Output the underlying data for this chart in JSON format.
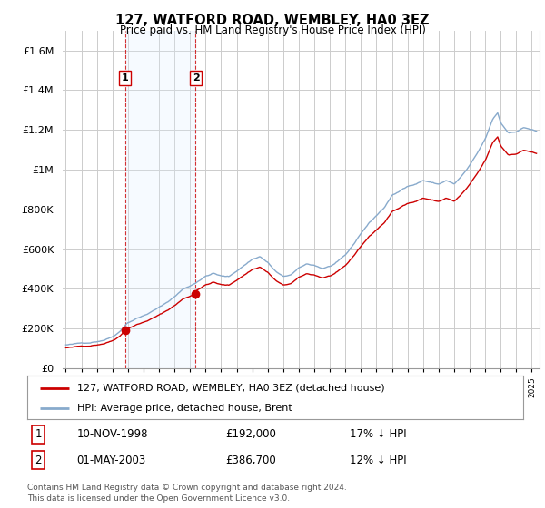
{
  "title": "127, WATFORD ROAD, WEMBLEY, HA0 3EZ",
  "subtitle": "Price paid vs. HM Land Registry's House Price Index (HPI)",
  "legend_line1": "127, WATFORD ROAD, WEMBLEY, HA0 3EZ (detached house)",
  "legend_line2": "HPI: Average price, detached house, Brent",
  "table_rows": [
    {
      "num": "1",
      "date": "10-NOV-1998",
      "price": "£192,000",
      "hpi": "17% ↓ HPI"
    },
    {
      "num": "2",
      "date": "01-MAY-2003",
      "price": "£386,700",
      "hpi": "12% ↓ HPI"
    }
  ],
  "footer": "Contains HM Land Registry data © Crown copyright and database right 2024.\nThis data is licensed under the Open Government Licence v3.0.",
  "price_paid_color": "#cc0000",
  "hpi_color": "#88aacc",
  "grid_color": "#cccccc",
  "background_color": "#ffffff",
  "sale_marker_color": "#cc0000",
  "shading_color": "#ddeeff",
  "shading_border_color": "#cc0000",
  "ylim": [
    0,
    1700000
  ],
  "yticks": [
    0,
    200000,
    400000,
    600000,
    800000,
    1000000,
    1200000,
    1400000,
    1600000
  ],
  "ytick_labels": [
    "£0",
    "£200K",
    "£400K",
    "£600K",
    "£800K",
    "£1M",
    "£1.2M",
    "£1.4M",
    "£1.6M"
  ],
  "sale1_year": 1998.86,
  "sale1_price": 192000,
  "sale2_year": 2003.33,
  "sale2_price": 386700,
  "xmin": 1994.8,
  "xmax": 2025.5,
  "hpi_sale1": 231000,
  "hpi_sale2": 439432
}
